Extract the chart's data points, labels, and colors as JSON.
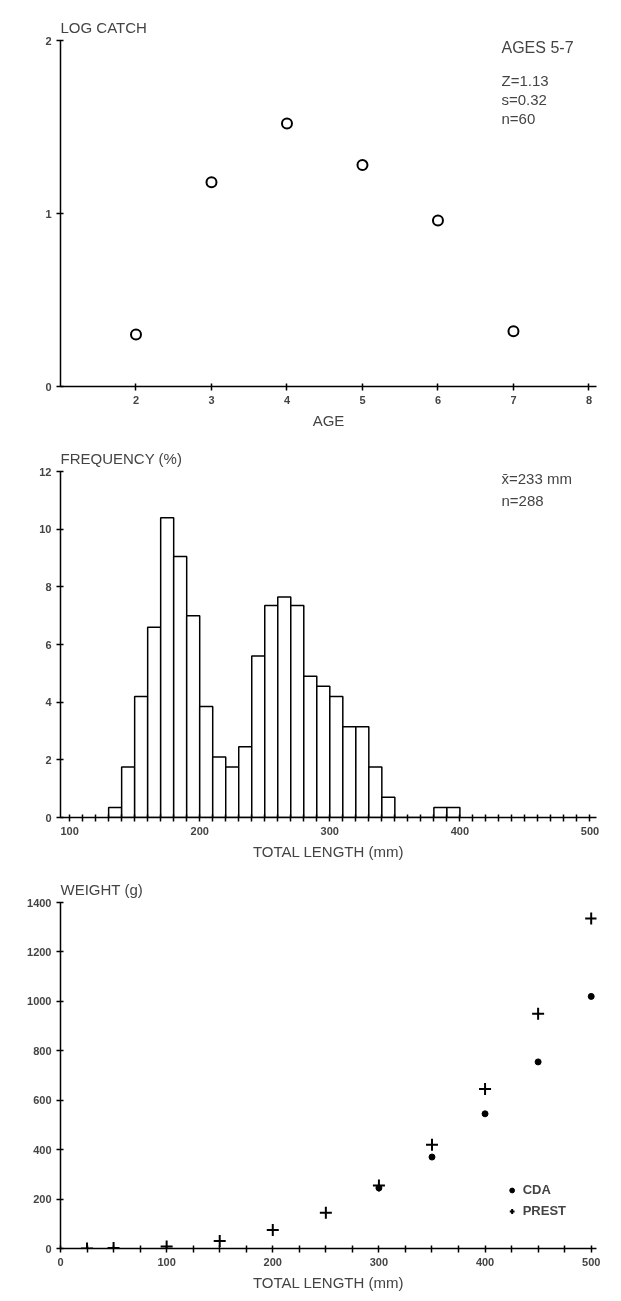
{
  "chart_data": [
    {
      "type": "scatter",
      "ylabel": "LOG CATCH",
      "xlabel": "AGE",
      "marker": "circle",
      "grid": false,
      "legend": false,
      "x": [
        2,
        3,
        4,
        5,
        6,
        7
      ],
      "series": [
        {
          "color": "#000000",
          "values": [
            0.3,
            1.18,
            1.52,
            1.28,
            0.96,
            0.32
          ]
        }
      ],
      "xlim": [
        1,
        8.1
      ],
      "ylim": [
        0,
        2
      ],
      "xticks": [
        2,
        3,
        4,
        5,
        6,
        7,
        8
      ],
      "yticks": [
        0,
        1,
        2
      ],
      "annotations": [
        "AGES 5-7",
        "Z=1.13",
        "s=0.32",
        "n=60"
      ]
    },
    {
      "type": "histogram",
      "ylabel": "FREQUENCY (%)",
      "xlabel": "TOTAL LENGTH (mm)",
      "grid": false,
      "color": "#ffffff",
      "bins": [
        130,
        140,
        150,
        160,
        170,
        180,
        190,
        200,
        210,
        220,
        230,
        240,
        250,
        260,
        270,
        280,
        290,
        300,
        310,
        320,
        330,
        340,
        350,
        360,
        370,
        380,
        390,
        400
      ],
      "values": [
        0.35,
        1.75,
        4.2,
        6.6,
        10.4,
        9.05,
        7.0,
        3.85,
        2.1,
        1.75,
        2.45,
        5.6,
        7.35,
        7.65,
        7.35,
        4.9,
        4.55,
        4.2,
        3.15,
        3.15,
        1.75,
        0.7,
        0,
        0,
        0,
        0.35,
        0.35
      ],
      "xlim": [
        93,
        505
      ],
      "ylim": [
        0,
        12
      ],
      "xticks": [
        100,
        {
          "value": 110,
          "label": null
        },
        {
          "value": 120,
          "label": null
        },
        {
          "value": 130,
          "label": null
        },
        {
          "value": 140,
          "label": null
        },
        {
          "value": 150,
          "label": null
        },
        {
          "value": 160,
          "label": null
        },
        {
          "value": 170,
          "label": null
        },
        {
          "value": 180,
          "label": null
        },
        {
          "value": 190,
          "label": null
        },
        200,
        {
          "value": 210,
          "label": null
        },
        {
          "value": 220,
          "label": null
        },
        {
          "value": 230,
          "label": null
        },
        {
          "value": 240,
          "label": null
        },
        {
          "value": 250,
          "label": null
        },
        {
          "value": 260,
          "label": null
        },
        {
          "value": 270,
          "label": null
        },
        {
          "value": 280,
          "label": null
        },
        {
          "value": 290,
          "label": null
        },
        300,
        {
          "value": 310,
          "label": null
        },
        {
          "value": 320,
          "label": null
        },
        {
          "value": 330,
          "label": null
        },
        {
          "value": 340,
          "label": null
        },
        {
          "value": 350,
          "label": null
        },
        {
          "value": 360,
          "label": null
        },
        {
          "value": 370,
          "label": null
        },
        {
          "value": 380,
          "label": null
        },
        {
          "value": 390,
          "label": null
        },
        400,
        {
          "value": 410,
          "label": null
        },
        {
          "value": 420,
          "label": null
        },
        {
          "value": 430,
          "label": null
        },
        {
          "value": 440,
          "label": null
        },
        {
          "value": 450,
          "label": null
        },
        {
          "value": 460,
          "label": null
        },
        {
          "value": 470,
          "label": null
        },
        {
          "value": 480,
          "label": null
        },
        {
          "value": 490,
          "label": null
        },
        500
      ],
      "yticks": [
        0,
        2,
        4,
        6,
        8,
        10,
        12
      ],
      "annotations": [
        "x̄=233 mm",
        "n=288"
      ]
    },
    {
      "type": "scatter",
      "ylabel": "WEIGHT (g)",
      "xlabel": "TOTAL LENGTH (mm)",
      "grid": false,
      "legend": "bottom right",
      "series": [
        {
          "name": "CDA",
          "color": "#000000",
          "marker": "circle",
          "x": [
            300,
            350,
            400,
            450,
            500
          ],
          "values": [
            245,
            370,
            545,
            755,
            1020
          ]
        },
        {
          "name": "PREST",
          "color": "#000000",
          "marker": "cross",
          "x": [
            25,
            50,
            100,
            150,
            200,
            250,
            300,
            350,
            400,
            450,
            500
          ],
          "values": [
            0,
            2,
            8,
            30,
            75,
            145,
            255,
            420,
            645,
            950,
            1335
          ]
        }
      ],
      "xlim": [
        0,
        505
      ],
      "ylim": [
        0,
        1400
      ],
      "xticks": [
        0,
        {
          "value": 25,
          "label": null
        },
        {
          "value": 50,
          "label": null
        },
        {
          "value": 75,
          "label": null
        },
        100,
        {
          "value": 125,
          "label": null
        },
        {
          "value": 150,
          "label": null
        },
        {
          "value": 175,
          "label": null
        },
        200,
        {
          "value": 225,
          "label": null
        },
        {
          "value": 250,
          "label": null
        },
        {
          "value": 275,
          "label": null
        },
        300,
        {
          "value": 325,
          "label": null
        },
        {
          "value": 350,
          "label": null
        },
        {
          "value": 375,
          "label": null
        },
        400,
        {
          "value": 425,
          "label": null
        },
        {
          "value": 450,
          "label": null
        },
        {
          "value": 475,
          "label": null
        },
        500
      ],
      "yticks": [
        0,
        200,
        400,
        600,
        800,
        1000,
        1200,
        1400
      ]
    }
  ]
}
